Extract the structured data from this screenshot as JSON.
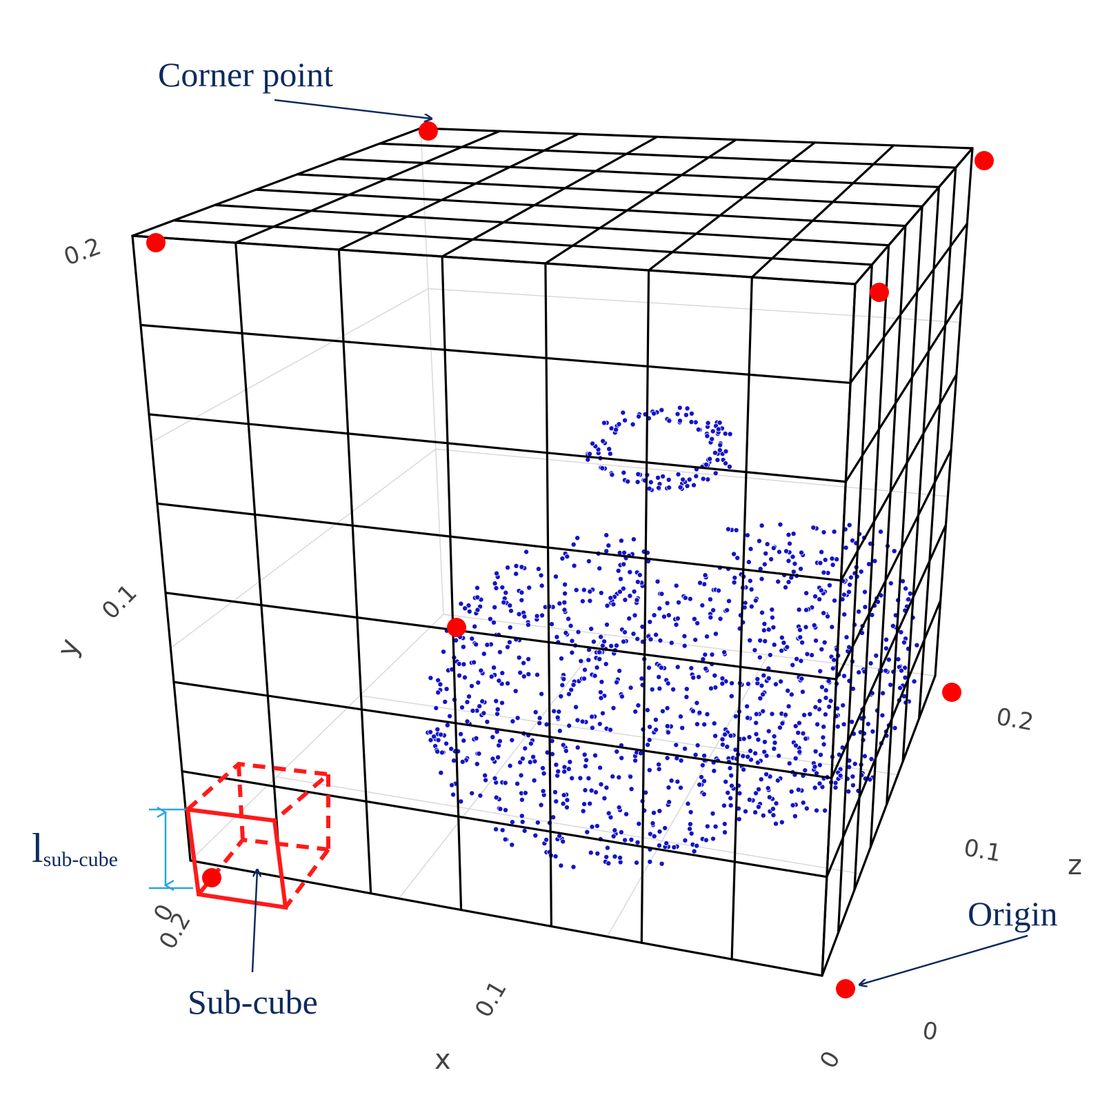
{
  "annotations": {
    "corner_point": "Corner point",
    "origin": "Origin",
    "sub_cube": "Sub-cube",
    "l_main": "l",
    "l_sub": "sub-cube"
  },
  "axes": {
    "x": {
      "title": "x",
      "ticks": [
        "0",
        "0.1",
        "0.2"
      ]
    },
    "y": {
      "title": "y",
      "ticks": [
        "0",
        "0.1",
        "0.2"
      ]
    },
    "z": {
      "title": "z",
      "ticks": [
        "0",
        "0.1",
        "0.2"
      ]
    }
  },
  "grid": {
    "divisions": 7
  },
  "colors": {
    "grid": "#000000",
    "corner_point": "#ff0000",
    "sub_cube": "#ff1a1a",
    "point_cloud": "#1414c8",
    "annotation": "#0d2b5e",
    "dimension_arrow": "#2aa6df"
  },
  "point_cloud": {
    "shape": "apple",
    "count": 1100
  }
}
